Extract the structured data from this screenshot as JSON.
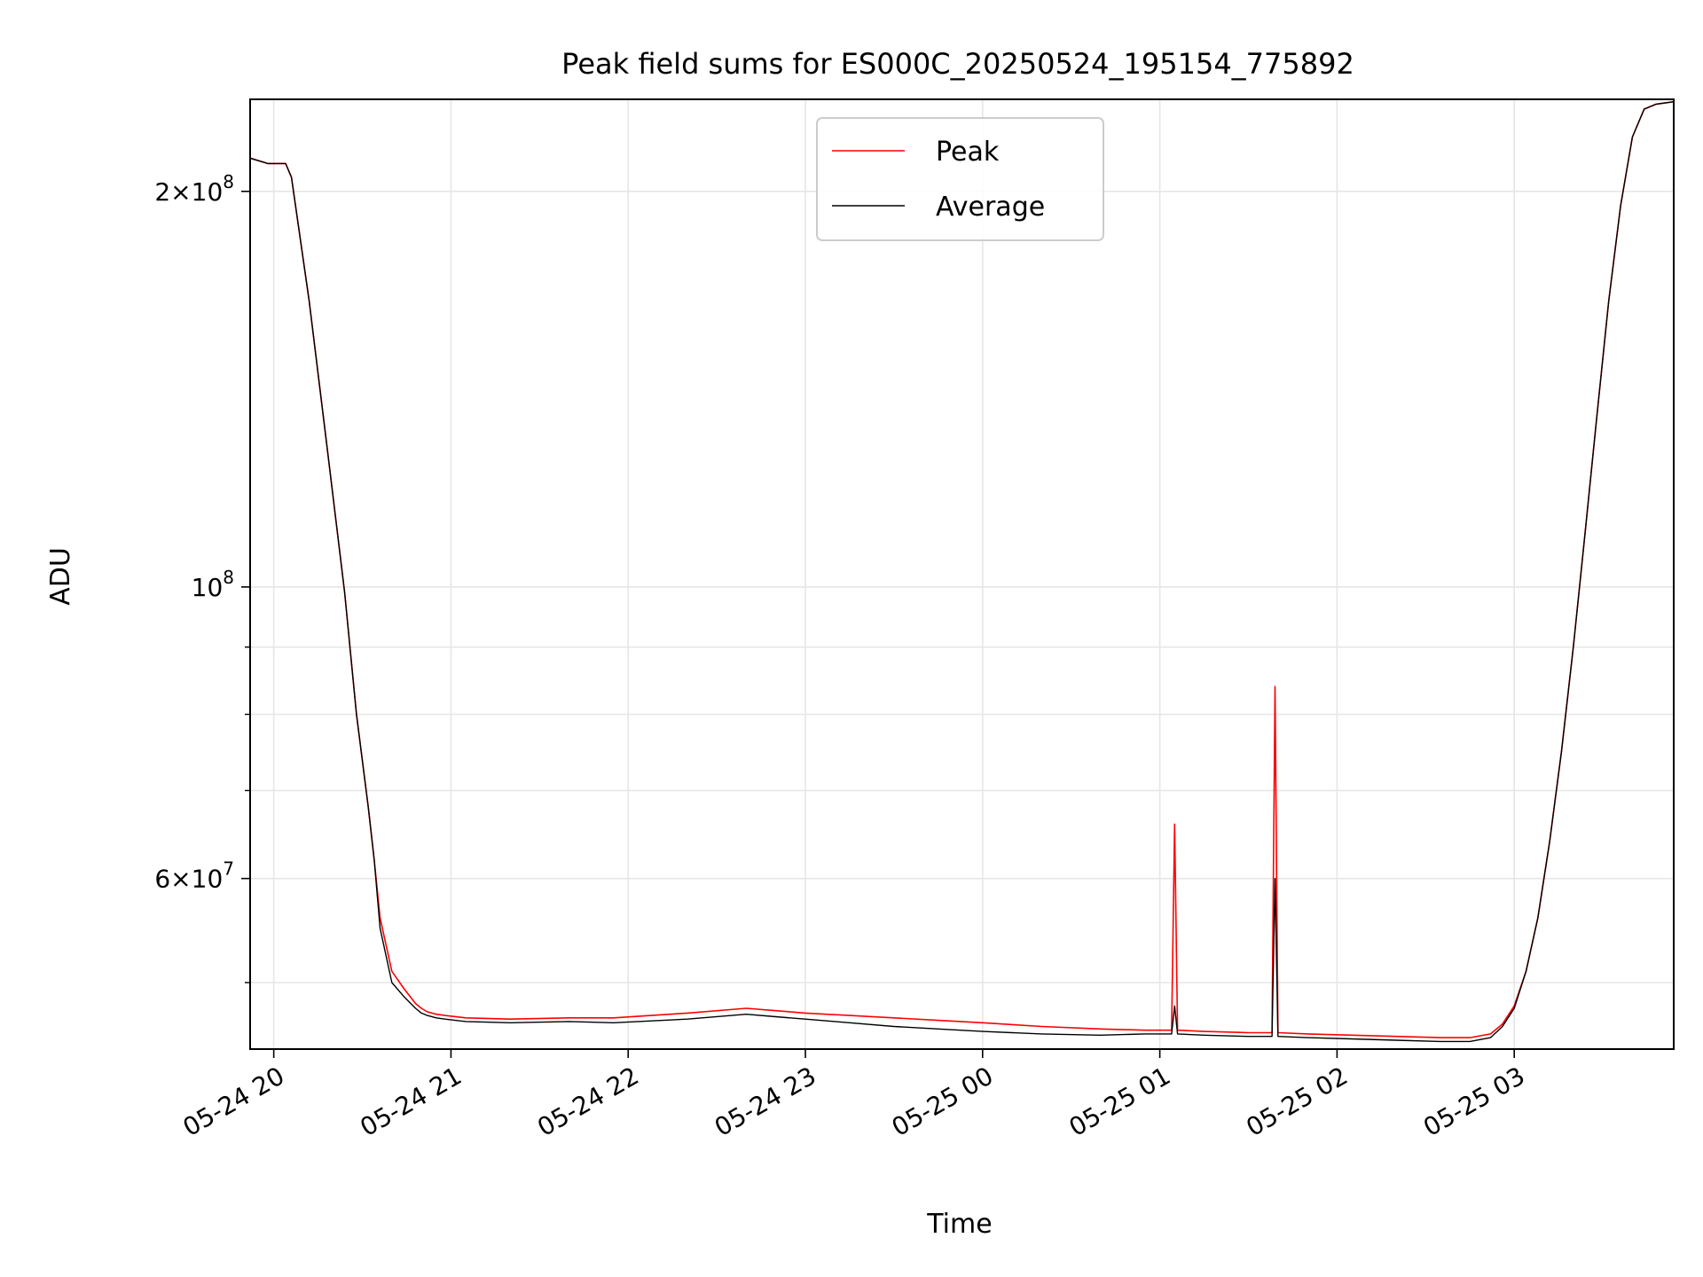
{
  "chart_data": {
    "type": "line",
    "title": "Peak field sums for ES000C_20250524_195154_775892",
    "xlabel": "Time",
    "ylabel": "ADU",
    "yscale": "log",
    "ylim": [
      44500000,
      235000000
    ],
    "xlim": [
      "2025-05-24 19:52",
      "2025-05-25 03:54"
    ],
    "grid": true,
    "legend": "top-center",
    "x_ticks": [
      {
        "label": "05-24 20",
        "value": "2025-05-24 20:00"
      },
      {
        "label": "05-24 21",
        "value": "2025-05-24 21:00"
      },
      {
        "label": "05-24 22",
        "value": "2025-05-24 22:00"
      },
      {
        "label": "05-24 23",
        "value": "2025-05-24 23:00"
      },
      {
        "label": "05-25 00",
        "value": "2025-05-25 00:00"
      },
      {
        "label": "05-25 01",
        "value": "2025-05-25 01:00"
      },
      {
        "label": "05-25 02",
        "value": "2025-05-25 02:00"
      },
      {
        "label": "05-25 03",
        "value": "2025-05-25 03:00"
      }
    ],
    "y_ticks": [
      {
        "base": "2",
        "exp": "8",
        "value": 200000000
      },
      {
        "base": "",
        "exp": "8",
        "value": 100000000
      },
      {
        "base": "6",
        "exp": "7",
        "value": 60000000
      }
    ],
    "y_minor_ticks": [
      50000000,
      70000000,
      80000000,
      90000000
    ],
    "series": [
      {
        "name": "Peak",
        "color": "#ff0000",
        "x": [
          "2025-05-24 19:52",
          "2025-05-24 19:58",
          "2025-05-24 20:04",
          "2025-05-24 20:06",
          "2025-05-24 20:12",
          "2025-05-24 20:18",
          "2025-05-24 20:24",
          "2025-05-24 20:28",
          "2025-05-24 20:32",
          "2025-05-24 20:34",
          "2025-05-24 20:36",
          "2025-05-24 20:40",
          "2025-05-24 20:44",
          "2025-05-24 20:48",
          "2025-05-24 20:50",
          "2025-05-24 20:52",
          "2025-05-24 20:55",
          "2025-05-24 20:58",
          "2025-05-24 21:05",
          "2025-05-24 21:20",
          "2025-05-24 21:40",
          "2025-05-24 21:55",
          "2025-05-24 22:20",
          "2025-05-24 22:40",
          "2025-05-24 22:50",
          "2025-05-24 23:00",
          "2025-05-24 23:15",
          "2025-05-24 23:30",
          "2025-05-24 23:45",
          "2025-05-25 00:00",
          "2025-05-25 00:20",
          "2025-05-25 00:40",
          "2025-05-25 00:55",
          "2025-05-25 01:04",
          "2025-05-25 01:05",
          "2025-05-25 01:06",
          "2025-05-25 01:15",
          "2025-05-25 01:30",
          "2025-05-25 01:38",
          "2025-05-25 01:39",
          "2025-05-25 01:40",
          "2025-05-25 01:50",
          "2025-05-25 02:05",
          "2025-05-25 02:20",
          "2025-05-25 02:35",
          "2025-05-25 02:45",
          "2025-05-25 02:52",
          "2025-05-25 02:56",
          "2025-05-25 03:00",
          "2025-05-25 03:04",
          "2025-05-25 03:08",
          "2025-05-25 03:12",
          "2025-05-25 03:16",
          "2025-05-25 03:20",
          "2025-05-25 03:24",
          "2025-05-25 03:28",
          "2025-05-25 03:32",
          "2025-05-25 03:36",
          "2025-05-25 03:40",
          "2025-05-25 03:44",
          "2025-05-25 03:48",
          "2025-05-25 03:54"
        ],
        "values": [
          212000000,
          210000000,
          210000000,
          205000000,
          165000000,
          128000000,
          99000000,
          80000000,
          68000000,
          62000000,
          56000000,
          51000000,
          49500000,
          48200000,
          47800000,
          47500000,
          47300000,
          47200000,
          47000000,
          46900000,
          47000000,
          47000000,
          47400000,
          47800000,
          47600000,
          47400000,
          47200000,
          47000000,
          46800000,
          46600000,
          46300000,
          46100000,
          46000000,
          46000000,
          66000000,
          46000000,
          45900000,
          45800000,
          45800000,
          84000000,
          45800000,
          45700000,
          45600000,
          45500000,
          45400000,
          45400000,
          45700000,
          46500000,
          48000000,
          51000000,
          56000000,
          64000000,
          75000000,
          90000000,
          110000000,
          135000000,
          165000000,
          195000000,
          220000000,
          231000000,
          233000000,
          234000000
        ]
      },
      {
        "name": "Average",
        "color": "#000000",
        "x": [
          "2025-05-24 19:52",
          "2025-05-24 19:58",
          "2025-05-24 20:04",
          "2025-05-24 20:06",
          "2025-05-24 20:12",
          "2025-05-24 20:18",
          "2025-05-24 20:24",
          "2025-05-24 20:28",
          "2025-05-24 20:32",
          "2025-05-24 20:34",
          "2025-05-24 20:36",
          "2025-05-24 20:40",
          "2025-05-24 20:44",
          "2025-05-24 20:48",
          "2025-05-24 20:50",
          "2025-05-24 20:52",
          "2025-05-24 20:55",
          "2025-05-24 20:58",
          "2025-05-24 21:05",
          "2025-05-24 21:20",
          "2025-05-24 21:40",
          "2025-05-24 21:55",
          "2025-05-24 22:20",
          "2025-05-24 22:40",
          "2025-05-24 22:50",
          "2025-05-24 23:00",
          "2025-05-24 23:15",
          "2025-05-24 23:30",
          "2025-05-24 23:45",
          "2025-05-25 00:00",
          "2025-05-25 00:20",
          "2025-05-25 00:40",
          "2025-05-25 00:55",
          "2025-05-25 01:04",
          "2025-05-25 01:05",
          "2025-05-25 01:06",
          "2025-05-25 01:15",
          "2025-05-25 01:30",
          "2025-05-25 01:38",
          "2025-05-25 01:39",
          "2025-05-25 01:40",
          "2025-05-25 01:50",
          "2025-05-25 02:05",
          "2025-05-25 02:20",
          "2025-05-25 02:35",
          "2025-05-25 02:45",
          "2025-05-25 02:52",
          "2025-05-25 02:56",
          "2025-05-25 03:00",
          "2025-05-25 03:04",
          "2025-05-25 03:08",
          "2025-05-25 03:12",
          "2025-05-25 03:16",
          "2025-05-25 03:20",
          "2025-05-25 03:24",
          "2025-05-25 03:28",
          "2025-05-25 03:32",
          "2025-05-25 03:36",
          "2025-05-25 03:40",
          "2025-05-25 03:44",
          "2025-05-25 03:48",
          "2025-05-25 03:54"
        ],
        "values": [
          212000000,
          210000000,
          210000000,
          205000000,
          165000000,
          128000000,
          99000000,
          80000000,
          68000000,
          62000000,
          55000000,
          50000000,
          48800000,
          47800000,
          47400000,
          47200000,
          47000000,
          46900000,
          46700000,
          46600000,
          46700000,
          46600000,
          46900000,
          47300000,
          47100000,
          46900000,
          46600000,
          46300000,
          46100000,
          45900000,
          45700000,
          45600000,
          45700000,
          45700000,
          48000000,
          45700000,
          45600000,
          45500000,
          45500000,
          60000000,
          45500000,
          45400000,
          45300000,
          45200000,
          45100000,
          45100000,
          45400000,
          46300000,
          47800000,
          51000000,
          56000000,
          64000000,
          75000000,
          90000000,
          110000000,
          135000000,
          165000000,
          195000000,
          220000000,
          231000000,
          233000000,
          234000000
        ]
      }
    ]
  }
}
